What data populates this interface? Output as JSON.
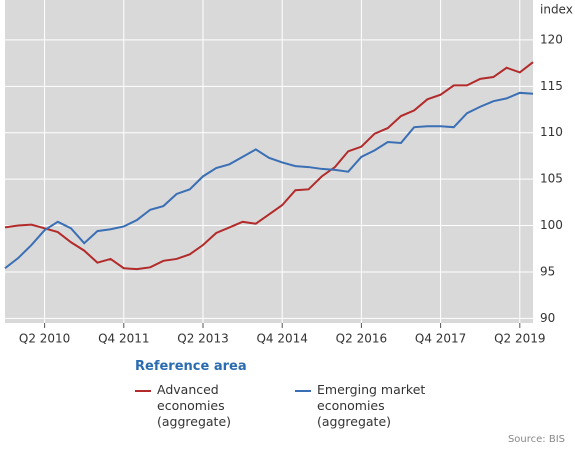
{
  "chart_data": {
    "type": "line",
    "unit_label": "index",
    "categories": [
      null,
      null,
      null,
      "Q2 2010",
      null,
      null,
      null,
      null,
      null,
      "Q4 2011",
      null,
      null,
      null,
      null,
      null,
      "Q2 2013",
      null,
      null,
      null,
      null,
      null,
      "Q4 2014",
      null,
      null,
      null,
      null,
      null,
      "Q2 2016",
      null,
      null,
      null,
      null,
      null,
      "Q4 2017",
      null,
      null,
      null,
      null,
      null,
      "Q2 2019",
      null
    ],
    "series": [
      {
        "name": "Advanced economies (aggregate)",
        "color": "#b22a2a",
        "values": [
          99.8,
          100.0,
          100.1,
          99.7,
          99.3,
          98.2,
          97.3,
          96.0,
          96.4,
          95.4,
          95.3,
          95.5,
          96.2,
          96.4,
          96.9,
          97.9,
          99.2,
          99.8,
          100.4,
          100.2,
          101.2,
          102.2,
          103.8,
          103.9,
          105.3,
          106.3,
          108.0,
          108.5,
          109.9,
          110.5,
          111.8,
          112.4,
          113.6,
          114.1,
          115.1,
          115.1,
          115.8,
          116.0,
          117.0,
          116.5,
          117.6
        ]
      },
      {
        "name": "Emerging market economies (aggregate)",
        "color": "#3a6fb5",
        "values": [
          95.4,
          96.5,
          97.9,
          99.5,
          100.4,
          99.7,
          98.1,
          99.4,
          99.6,
          99.9,
          100.6,
          101.7,
          102.1,
          103.4,
          103.9,
          105.3,
          106.2,
          106.6,
          107.4,
          108.2,
          107.3,
          106.8,
          106.4,
          106.3,
          106.1,
          106.0,
          105.8,
          107.4,
          108.1,
          109.0,
          108.9,
          110.6,
          110.7,
          110.7,
          110.6,
          112.1,
          112.8,
          113.4,
          113.7,
          114.3,
          114.2
        ]
      }
    ],
    "ylim": [
      89.5,
      124.3
    ],
    "yticks": [
      90,
      95,
      100,
      105,
      110,
      115,
      120
    ],
    "grid": true,
    "legend_title": "Reference area",
    "source": "Source: BIS"
  }
}
